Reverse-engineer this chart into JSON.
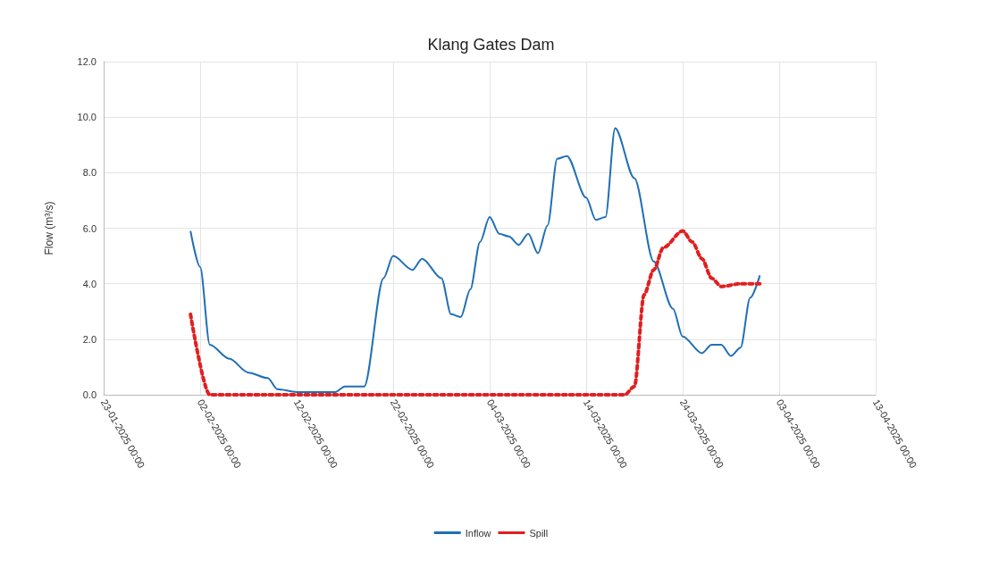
{
  "chart_data": {
    "type": "line",
    "title": "Klang Gates Dam",
    "ylabel": "Flow (m³/s)",
    "xlim": [
      "2025-01-23",
      "2025-04-13"
    ],
    "xticks": [
      {
        "value": "2025-01-23",
        "label": "23-01-2025 00:00"
      },
      {
        "value": "2025-02-02",
        "label": "02-02-2025 00:00"
      },
      {
        "value": "2025-02-12",
        "label": "12-02-2025 00:00"
      },
      {
        "value": "2025-02-22",
        "label": "22-02-2025 00:00"
      },
      {
        "value": "2025-03-04",
        "label": "04-03-2025 00:00"
      },
      {
        "value": "2025-03-14",
        "label": "14-03-2025 00:00"
      },
      {
        "value": "2025-03-24",
        "label": "24-03-2025 00:00"
      },
      {
        "value": "2025-04-03",
        "label": "03-04-2025 00:00"
      },
      {
        "value": "2025-04-13",
        "label": "13-04-2025 00:00"
      }
    ],
    "ylim": [
      0,
      12
    ],
    "yticks": [
      {
        "value": 0,
        "label": "0.0"
      },
      {
        "value": 2,
        "label": "2.0"
      },
      {
        "value": 4,
        "label": "4.0"
      },
      {
        "value": 6,
        "label": "6.0"
      },
      {
        "value": 8,
        "label": "8.0"
      },
      {
        "value": 10,
        "label": "10.0"
      },
      {
        "value": 12,
        "label": "12.0"
      }
    ],
    "grid": true,
    "legend": "bottom",
    "series": [
      {
        "name": "Inflow",
        "color": "#1f6fb5",
        "line_style": "solid",
        "x": [
          "2025-02-01",
          "2025-02-02",
          "2025-02-03",
          "2025-02-05",
          "2025-02-07",
          "2025-02-09",
          "2025-02-10",
          "2025-02-12",
          "2025-02-16",
          "2025-02-17",
          "2025-02-19",
          "2025-02-21",
          "2025-02-22",
          "2025-02-24",
          "2025-02-25",
          "2025-02-27",
          "2025-02-28",
          "2025-03-01",
          "2025-03-02",
          "2025-03-03",
          "2025-03-04",
          "2025-03-05",
          "2025-03-06",
          "2025-03-07",
          "2025-03-08",
          "2025-03-09",
          "2025-03-10",
          "2025-03-11",
          "2025-03-12",
          "2025-03-14",
          "2025-03-15",
          "2025-03-16",
          "2025-03-17",
          "2025-03-19",
          "2025-03-21",
          "2025-03-23",
          "2025-03-24",
          "2025-03-26",
          "2025-03-27",
          "2025-03-28",
          "2025-03-29",
          "2025-03-30",
          "2025-03-31",
          "2025-04-01"
        ],
        "values": [
          5.9,
          4.6,
          1.8,
          1.3,
          0.8,
          0.6,
          0.2,
          0.1,
          0.1,
          0.3,
          0.3,
          4.2,
          5.0,
          4.5,
          4.9,
          4.2,
          2.9,
          2.8,
          3.8,
          5.5,
          6.4,
          5.8,
          5.7,
          5.4,
          5.8,
          5.1,
          6.1,
          8.5,
          8.6,
          7.1,
          6.3,
          6.4,
          9.6,
          7.8,
          4.8,
          3.1,
          2.1,
          1.5,
          1.8,
          1.8,
          1.4,
          1.7,
          3.5,
          4.3
        ]
      },
      {
        "name": "Spill",
        "color": "#e02020",
        "line_style": "dotted",
        "x": [
          "2025-02-01",
          "2025-02-03",
          "2025-03-18",
          "2025-03-19",
          "2025-03-20",
          "2025-03-21",
          "2025-03-22",
          "2025-03-24",
          "2025-03-25",
          "2025-03-26",
          "2025-03-27",
          "2025-03-28",
          "2025-03-30",
          "2025-04-01"
        ],
        "values": [
          2.9,
          0,
          0,
          0.3,
          3.6,
          4.5,
          5.3,
          5.9,
          5.5,
          4.9,
          4.2,
          3.9,
          4.0,
          4.0
        ]
      }
    ]
  }
}
